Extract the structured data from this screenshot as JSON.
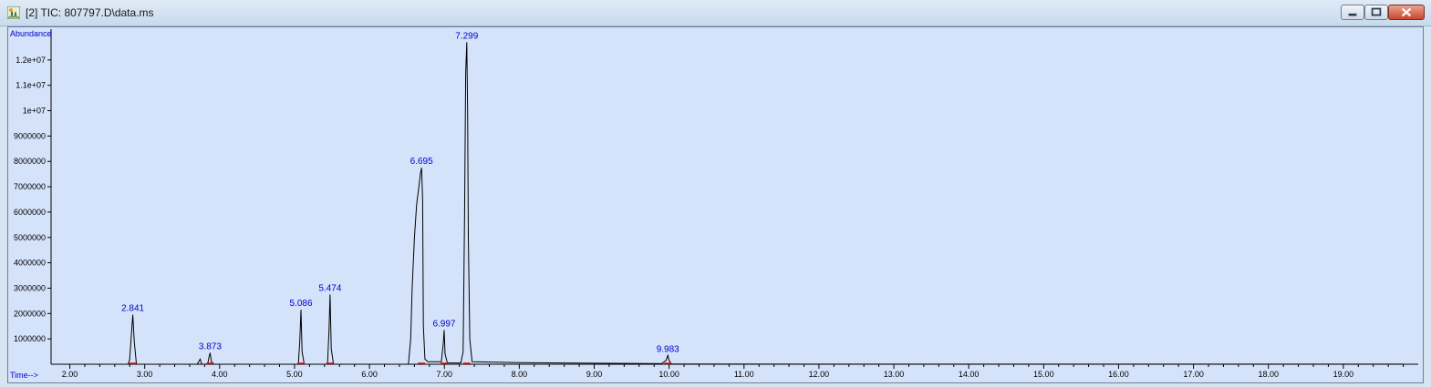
{
  "window": {
    "title": "[2] TIC: 807797.D\\data.ms",
    "controls": [
      "minimize",
      "maximize",
      "close"
    ],
    "app_icon": "chromatogram-app-icon"
  },
  "chart_data": {
    "type": "line",
    "title": "",
    "xlabel": "Time-->",
    "ylabel": "Abundance",
    "xlim": [
      1.75,
      20.0
    ],
    "ylim": [
      0,
      13000000
    ],
    "x_ticks": [
      "2.00",
      "3.00",
      "4.00",
      "5.00",
      "6.00",
      "7.00",
      "8.00",
      "9.00",
      "10.00",
      "11.00",
      "12.00",
      "13.00",
      "14.00",
      "15.00",
      "16.00",
      "17.00",
      "18.00",
      "19.00"
    ],
    "y_ticks": [
      {
        "value": 1000000,
        "label": "1000000"
      },
      {
        "value": 2000000,
        "label": "2000000"
      },
      {
        "value": 3000000,
        "label": "3000000"
      },
      {
        "value": 4000000,
        "label": "4000000"
      },
      {
        "value": 5000000,
        "label": "5000000"
      },
      {
        "value": 6000000,
        "label": "6000000"
      },
      {
        "value": 7000000,
        "label": "7000000"
      },
      {
        "value": 8000000,
        "label": "8000000"
      },
      {
        "value": 9000000,
        "label": "9000000"
      },
      {
        "value": 10000000,
        "label": "1e+07"
      },
      {
        "value": 11000000,
        "label": "1.1e+07"
      },
      {
        "value": 12000000,
        "label": "1.2e+07"
      }
    ],
    "peak_labels": [
      {
        "label": "2.841",
        "x": 2.841,
        "y": 1950000
      },
      {
        "label": "3.873",
        "x": 3.873,
        "y": 450000
      },
      {
        "label": "5.086",
        "x": 5.086,
        "y": 2150000
      },
      {
        "label": "5.474",
        "x": 5.474,
        "y": 2750000
      },
      {
        "label": "6.695",
        "x": 6.695,
        "y": 7750000
      },
      {
        "label": "6.997",
        "x": 6.997,
        "y": 1350000
      },
      {
        "label": "7.299",
        "x": 7.299,
        "y": 12700000
      },
      {
        "label": "9.983",
        "x": 9.983,
        "y": 350000
      }
    ],
    "series": [
      {
        "values": [
          [
            1.8,
            0
          ],
          [
            2.78,
            0
          ],
          [
            2.8,
            200000
          ],
          [
            2.83,
            1500000
          ],
          [
            2.841,
            1950000
          ],
          [
            2.86,
            900000
          ],
          [
            2.89,
            0
          ],
          [
            3.7,
            0
          ],
          [
            3.74,
            200000
          ],
          [
            3.76,
            0
          ],
          [
            3.84,
            0
          ],
          [
            3.86,
            300000
          ],
          [
            3.873,
            450000
          ],
          [
            3.89,
            100000
          ],
          [
            3.92,
            0
          ],
          [
            5.05,
            0
          ],
          [
            5.07,
            900000
          ],
          [
            5.086,
            2150000
          ],
          [
            5.1,
            500000
          ],
          [
            5.13,
            0
          ],
          [
            5.44,
            0
          ],
          [
            5.46,
            1300000
          ],
          [
            5.474,
            2750000
          ],
          [
            5.49,
            600000
          ],
          [
            5.52,
            0
          ],
          [
            6.52,
            0
          ],
          [
            6.55,
            1000000
          ],
          [
            6.57,
            3000000
          ],
          [
            6.6,
            5000000
          ],
          [
            6.63,
            6300000
          ],
          [
            6.66,
            7000000
          ],
          [
            6.68,
            7500000
          ],
          [
            6.695,
            7750000
          ],
          [
            6.71,
            6500000
          ],
          [
            6.72,
            1500000
          ],
          [
            6.74,
            200000
          ],
          [
            6.78,
            100000
          ],
          [
            6.96,
            100000
          ],
          [
            6.985,
            800000
          ],
          [
            6.997,
            1350000
          ],
          [
            7.01,
            400000
          ],
          [
            7.04,
            50000
          ],
          [
            7.22,
            50000
          ],
          [
            7.25,
            500000
          ],
          [
            7.27,
            6000000
          ],
          [
            7.285,
            11500000
          ],
          [
            7.299,
            12700000
          ],
          [
            7.31,
            10000000
          ],
          [
            7.32,
            5000000
          ],
          [
            7.34,
            1000000
          ],
          [
            7.37,
            100000
          ],
          [
            8.0,
            60000
          ],
          [
            9.0,
            40000
          ],
          [
            9.9,
            20000
          ],
          [
            9.96,
            150000
          ],
          [
            9.983,
            350000
          ],
          [
            10.0,
            150000
          ],
          [
            10.03,
            10000
          ],
          [
            12.0,
            5000
          ],
          [
            19.8,
            5000
          ]
        ]
      }
    ],
    "colors": {
      "background": "#d5e3fa",
      "trace": "#000000",
      "peak_label": "#0000cc",
      "axis_label": "#0000cc",
      "baseline_marker": "#ff0000"
    },
    "grid": false
  }
}
